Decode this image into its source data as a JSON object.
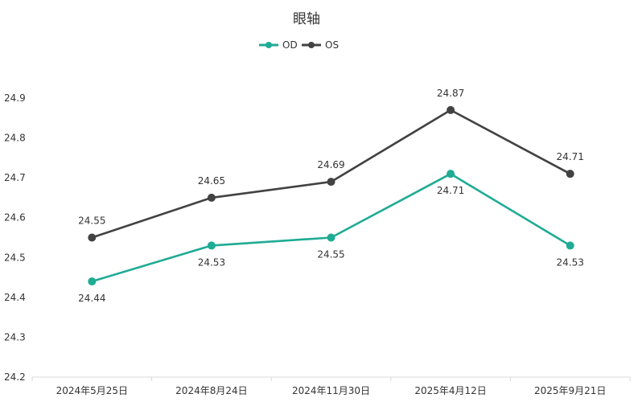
{
  "chart_data": {
    "type": "line",
    "title": "眼轴",
    "xlabel": "",
    "ylabel": "",
    "categories": [
      "2024年5月25日",
      "2024年8月24日",
      "2024年11月30日",
      "2025年4月12日",
      "2025年9月21日"
    ],
    "yticks": [
      "24.2",
      "24.3",
      "24.4",
      "24.5",
      "24.6",
      "24.7",
      "24.8",
      "24.9"
    ],
    "ylim": [
      24.2,
      24.9
    ],
    "grid": false,
    "legend": "top-center",
    "series": [
      {
        "name": "OD",
        "color": "#1fab94",
        "values": [
          24.44,
          24.53,
          24.55,
          24.71,
          24.53
        ],
        "labels": [
          "24.44",
          "24.53",
          "24.55",
          "24.71",
          "24.53"
        ],
        "label_position": "below"
      },
      {
        "name": "OS",
        "color": "#424242",
        "values": [
          24.55,
          24.65,
          24.69,
          24.87,
          24.71
        ],
        "labels": [
          "24.55",
          "24.65",
          "24.69",
          "24.87",
          "24.71"
        ],
        "label_position": "above"
      }
    ]
  }
}
